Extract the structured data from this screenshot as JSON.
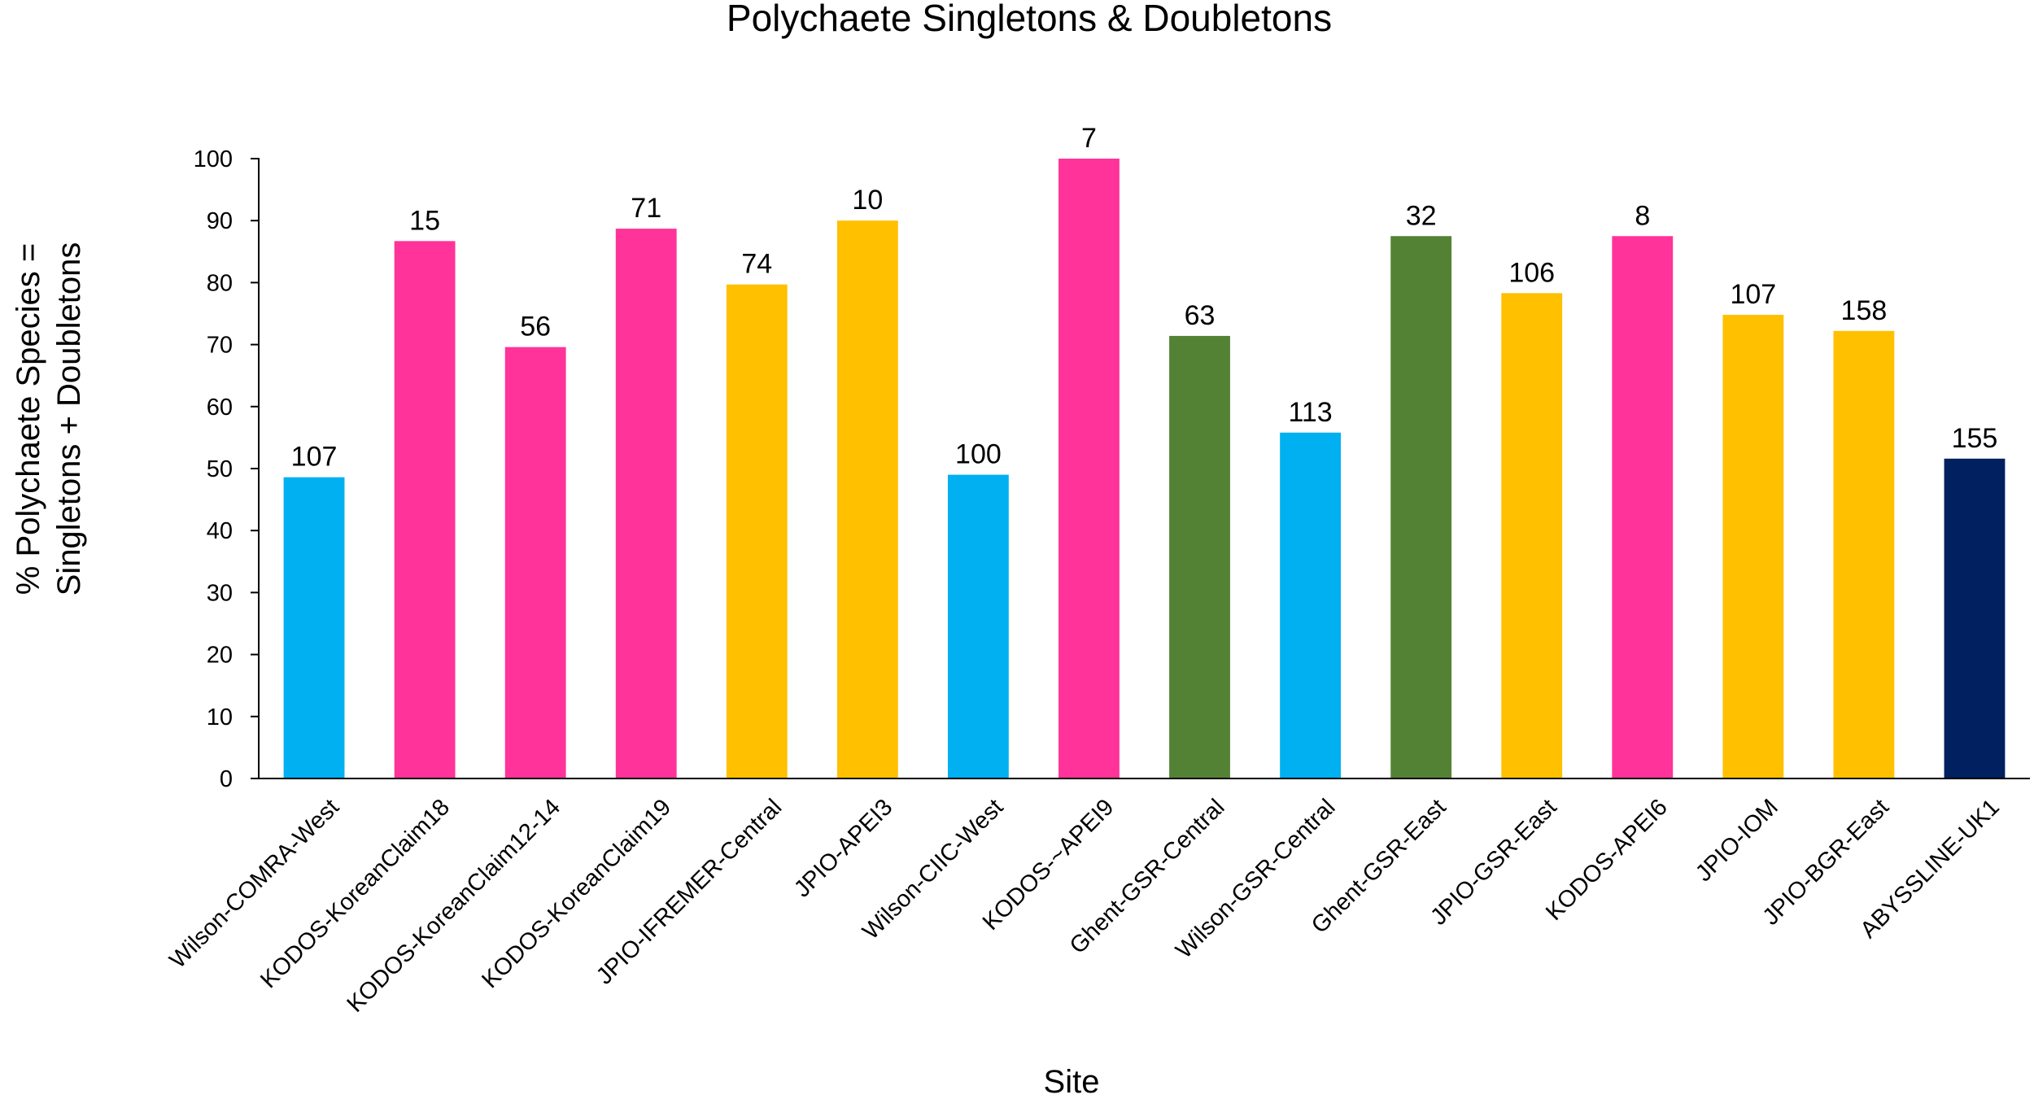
{
  "chart_data": {
    "type": "bar",
    "title": "Polychaete Singletons & Doubletons",
    "xlabel": "Site",
    "ylabel": [
      "% Polychaete Species =",
      "Singletons + Doubletons"
    ],
    "ylim": [
      0,
      100
    ],
    "yticks": [
      0,
      10,
      20,
      30,
      40,
      50,
      60,
      70,
      80,
      90,
      100
    ],
    "grid": false,
    "legend": "none",
    "categories": [
      "Wilson-COMRA-West",
      "KODOS-KoreanClaim18",
      "KODOS-KoreanClaim12-14",
      "KODOS-KoreanClaim19",
      "JPIO-IFREMER-Central",
      "JPIO-APEI3",
      "Wilson-CIIC-West",
      "KODOS-~APEI9",
      "Ghent-GSR-Central",
      "Wilson-GSR-Central",
      "Ghent-GSR-East",
      "JPIO-GSR-East",
      "KODOS-APEI6",
      "JPIO-IOM",
      "JPIO-BGR-East",
      "ABYSSLINE-UK1"
    ],
    "values": [
      48.6,
      86.7,
      69.6,
      88.7,
      79.7,
      90.0,
      49.0,
      100.0,
      71.4,
      55.8,
      87.5,
      78.3,
      87.5,
      74.8,
      72.2,
      51.6
    ],
    "data_labels": [
      "107",
      "15",
      "56",
      "71",
      "74",
      "10",
      "100",
      "7",
      "63",
      "113",
      "32",
      "106",
      "8",
      "107",
      "158",
      "155"
    ],
    "bar_colors": [
      "#00b0f0",
      "#ff3399",
      "#ff3399",
      "#ff3399",
      "#ffc000",
      "#ffc000",
      "#00b0f0",
      "#ff3399",
      "#548235",
      "#00b0f0",
      "#548235",
      "#ffc000",
      "#ff3399",
      "#ffc000",
      "#ffc000",
      "#002060"
    ]
  }
}
